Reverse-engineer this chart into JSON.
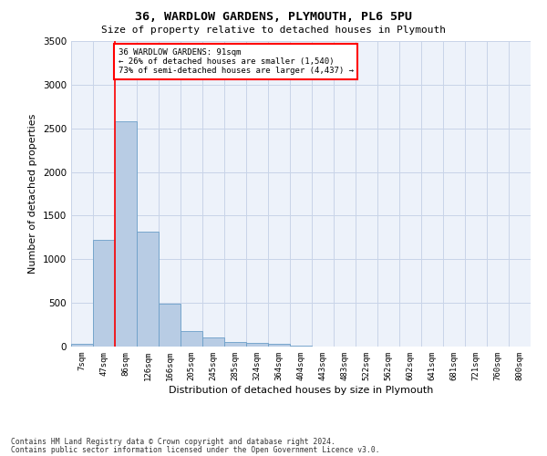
{
  "title_line1": "36, WARDLOW GARDENS, PLYMOUTH, PL6 5PU",
  "title_line2": "Size of property relative to detached houses in Plymouth",
  "xlabel": "Distribution of detached houses by size in Plymouth",
  "ylabel": "Number of detached properties",
  "categories": [
    "7sqm",
    "47sqm",
    "86sqm",
    "126sqm",
    "166sqm",
    "205sqm",
    "245sqm",
    "285sqm",
    "324sqm",
    "364sqm",
    "404sqm",
    "443sqm",
    "483sqm",
    "522sqm",
    "562sqm",
    "602sqm",
    "641sqm",
    "681sqm",
    "721sqm",
    "760sqm",
    "800sqm"
  ],
  "values": [
    30,
    1220,
    2580,
    1320,
    490,
    175,
    100,
    50,
    40,
    30,
    10,
    5,
    3,
    1,
    1,
    0,
    0,
    0,
    0,
    0,
    0
  ],
  "bar_color": "#b8cce4",
  "bar_edge_color": "#6b9ec8",
  "grid_color": "#c8d4e8",
  "background_color": "#edf2fa",
  "vline_color": "red",
  "annotation_text": "36 WARDLOW GARDENS: 91sqm\n← 26% of detached houses are smaller (1,540)\n73% of semi-detached houses are larger (4,437) →",
  "annotation_box_color": "white",
  "annotation_box_edge": "red",
  "ylim": [
    0,
    3500
  ],
  "yticks": [
    0,
    500,
    1000,
    1500,
    2000,
    2500,
    3000,
    3500
  ],
  "footer_line1": "Contains HM Land Registry data © Crown copyright and database right 2024.",
  "footer_line2": "Contains public sector information licensed under the Open Government Licence v3.0."
}
